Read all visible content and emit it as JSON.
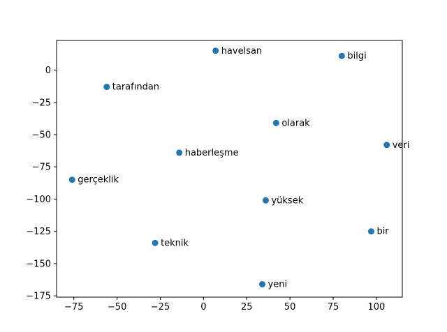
{
  "chart_data": {
    "type": "scatter",
    "title": "",
    "xlabel": "",
    "ylabel": "",
    "xlim": [
      -85,
      115
    ],
    "ylim": [
      -176,
      23
    ],
    "grid": false,
    "marker_color": "#1f77b4",
    "xticks": [
      -75,
      -50,
      -25,
      0,
      25,
      50,
      75,
      100
    ],
    "xtick_labels": [
      "−75",
      "−50",
      "−25",
      "0",
      "25",
      "50",
      "75",
      "100"
    ],
    "yticks": [
      0,
      -25,
      -50,
      -75,
      -100,
      -125,
      -150,
      -175
    ],
    "ytick_labels": [
      "0",
      "−25",
      "−50",
      "−75",
      "−100",
      "−125",
      "−150",
      "−175"
    ],
    "points": [
      {
        "label": "havelsan",
        "x": 7,
        "y": 15
      },
      {
        "label": "bilgi",
        "x": 80,
        "y": 11
      },
      {
        "label": "tarafından",
        "x": -56,
        "y": -13
      },
      {
        "label": "olarak",
        "x": 42,
        "y": -41
      },
      {
        "label": "veri",
        "x": 106,
        "y": -58
      },
      {
        "label": "haberleşme",
        "x": -14,
        "y": -64
      },
      {
        "label": "gerçeklik",
        "x": -76,
        "y": -85
      },
      {
        "label": "yüksek",
        "x": 36,
        "y": -101
      },
      {
        "label": "bir",
        "x": 97,
        "y": -125
      },
      {
        "label": "teknik",
        "x": -28,
        "y": -134
      },
      {
        "label": "yeni",
        "x": 34,
        "y": -166
      }
    ]
  }
}
